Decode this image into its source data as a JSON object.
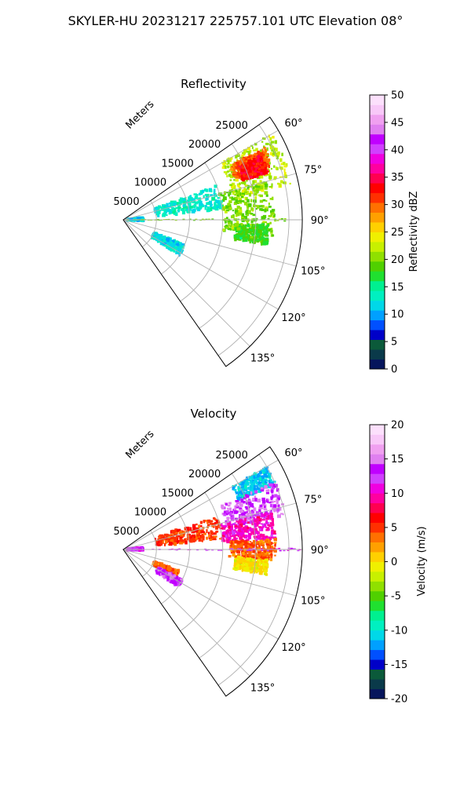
{
  "title": "SKYLER-HU  20231217  225757.101 UTC Elevation 08°",
  "chart_data": [
    {
      "type": "polar-sector",
      "title": "Reflectivity",
      "theta_range_deg": [
        55,
        145
      ],
      "r_range": [
        0,
        27000
      ],
      "r_label": "Meters",
      "r_ticks": [
        5000,
        10000,
        15000,
        20000,
        25000
      ],
      "r_tick_labels": [
        "5000",
        "10000",
        "15000",
        "20000",
        "25000"
      ],
      "theta_ticks": [
        60,
        75,
        90,
        105,
        120,
        135
      ],
      "theta_tick_labels": [
        "60°",
        "75°",
        "90°",
        "105°",
        "120°",
        "135°"
      ],
      "grid": true,
      "colorbar": {
        "label": "Reflectivity dBZ",
        "range": [
          0,
          50
        ],
        "ticks": [
          0,
          5,
          10,
          15,
          20,
          25,
          30,
          35,
          40,
          45,
          50
        ],
        "tick_labels": [
          "0",
          "5",
          "10",
          "15",
          "20",
          "25",
          "30",
          "35",
          "40",
          "45",
          "50"
        ],
        "colors": [
          "#06155c",
          "#0a3a4a",
          "#0b5a3a",
          "#0000c8",
          "#0050ff",
          "#00a0ff",
          "#00d8e8",
          "#00f0c0",
          "#00f090",
          "#20e030",
          "#50d000",
          "#90e000",
          "#c8f000",
          "#f0f000",
          "#ffd000",
          "#ffa000",
          "#ff7000",
          "#ff3000",
          "#ff0000",
          "#ff0050",
          "#ff00a0",
          "#f000e0",
          "#d040ff",
          "#c000ff",
          "#e080f0",
          "#f0a0f0",
          "#f8c8f8",
          "#fce0fc"
        ]
      },
      "echoes": [
        {
          "theta": [
            60,
            78
          ],
          "r": [
            17000,
            26000
          ],
          "value": 22
        },
        {
          "theta": [
            63,
            70
          ],
          "r": [
            18000,
            24000
          ],
          "value": 30
        },
        {
          "theta": [
            65,
            72
          ],
          "r": [
            19000,
            23000
          ],
          "value": 33
        },
        {
          "theta": [
            75,
            96
          ],
          "r": [
            15000,
            23000
          ],
          "value": 20
        },
        {
          "theta": [
            92,
            100
          ],
          "r": [
            17000,
            22000
          ],
          "value": 18
        },
        {
          "theta": [
            70,
            84
          ],
          "r": [
            5000,
            15000
          ],
          "value": 13
        },
        {
          "theta": [
            84,
            92
          ],
          "r": [
            500,
            3000
          ],
          "value": 12
        },
        {
          "theta": [
            112,
            122
          ],
          "r": [
            5000,
            10000
          ],
          "value": 12
        },
        {
          "theta": [
            89.5,
            90.5
          ],
          "r": [
            0,
            27000
          ],
          "value": 20
        }
      ]
    },
    {
      "type": "polar-sector",
      "title": "Velocity",
      "theta_range_deg": [
        55,
        145
      ],
      "r_range": [
        0,
        27000
      ],
      "r_label": "Meters",
      "r_ticks": [
        5000,
        10000,
        15000,
        20000,
        25000
      ],
      "r_tick_labels": [
        "5000",
        "10000",
        "15000",
        "20000",
        "25000"
      ],
      "theta_ticks": [
        60,
        75,
        90,
        105,
        120,
        135
      ],
      "theta_tick_labels": [
        "60°",
        "75°",
        "90°",
        "105°",
        "120°",
        "135°"
      ],
      "grid": true,
      "colorbar": {
        "label": "Velocity (m/s)",
        "range": [
          -20,
          20
        ],
        "ticks": [
          -20,
          -15,
          -10,
          -5,
          0,
          5,
          10,
          15,
          20
        ],
        "tick_labels": [
          "-20",
          "-15",
          "-10",
          "-5",
          "0",
          "5",
          "10",
          "15",
          "20"
        ],
        "colors": [
          "#06155c",
          "#0a3a4a",
          "#0b5a3a",
          "#0000c8",
          "#0050ff",
          "#00a0ff",
          "#00d8e8",
          "#00f0c0",
          "#00f090",
          "#20e030",
          "#50d000",
          "#90e000",
          "#c8f000",
          "#f0f000",
          "#ffd000",
          "#ffa000",
          "#ff7000",
          "#ff3000",
          "#ff0000",
          "#ff0050",
          "#ff00a0",
          "#f000e0",
          "#d040ff",
          "#c000ff",
          "#e080f0",
          "#f0a0f0",
          "#f8c8f8",
          "#fce0fc"
        ]
      },
      "echoes": [
        {
          "theta": [
            60,
            67
          ],
          "r": [
            19000,
            25000
          ],
          "value": -11
        },
        {
          "theta": [
            66,
            78
          ],
          "r": [
            16000,
            25000
          ],
          "value": 14
        },
        {
          "theta": [
            76,
            86
          ],
          "r": [
            15000,
            23000
          ],
          "value": 10
        },
        {
          "theta": [
            86,
            94
          ],
          "r": [
            16000,
            23000
          ],
          "value": 4
        },
        {
          "theta": [
            94,
            100
          ],
          "r": [
            17000,
            22000
          ],
          "value": 0
        },
        {
          "theta": [
            70,
            84
          ],
          "r": [
            5000,
            15000
          ],
          "value": 5
        },
        {
          "theta": [
            84,
            92
          ],
          "r": [
            500,
            3000
          ],
          "value": 12
        },
        {
          "theta": [
            111,
            117
          ],
          "r": [
            5000,
            9000
          ],
          "value": 4
        },
        {
          "theta": [
            117,
            124
          ],
          "r": [
            6000,
            10000
          ],
          "value": 14
        },
        {
          "theta": [
            89.5,
            90.5
          ],
          "r": [
            0,
            27000
          ],
          "value": 12
        }
      ]
    }
  ]
}
